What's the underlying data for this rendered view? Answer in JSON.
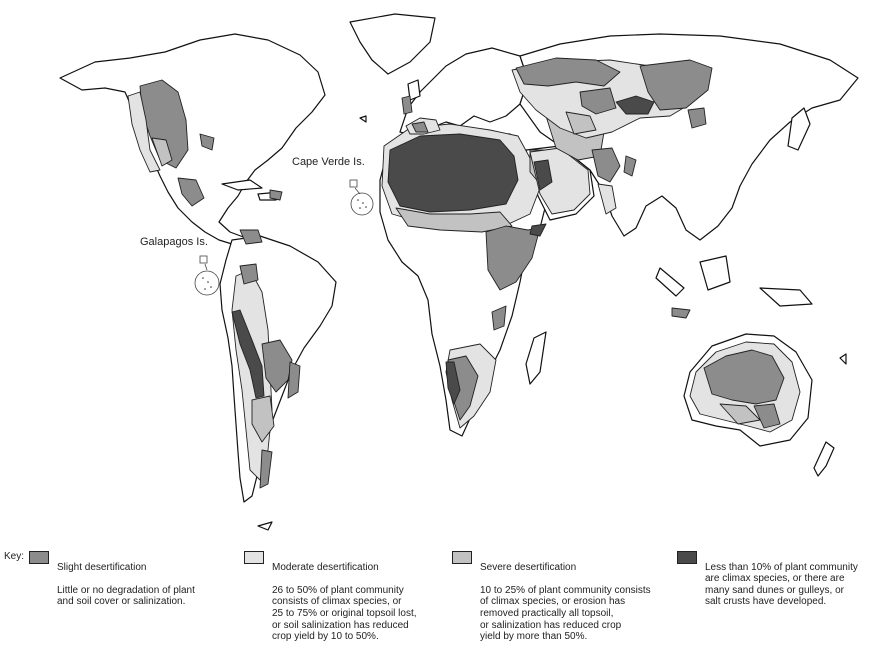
{
  "map": {
    "colors": {
      "slight": "#8c8c8c",
      "moderate": "#e3e3e3",
      "severe": "#c2c2c2",
      "extreme": "#4a4a4a",
      "land": "#ffffff",
      "outline": "#111111"
    },
    "labels": {
      "cape_verde": "Cape Verde Is.",
      "galapagos": "Galapagos Is."
    }
  },
  "legend": {
    "key_label": "Key:",
    "items": [
      {
        "title": "Slight desertification",
        "description": "Little or no degradation of plant\nand soil cover or salinization.",
        "color": "#8c8c8c"
      },
      {
        "title": "Moderate desertification",
        "description": "26 to 50% of plant community\nconsists of climax species, or\n25 to 75% or original topsoil lost,\nor soil salinization has reduced\ncrop yield by 10 to 50%.",
        "color": "#e3e3e3"
      },
      {
        "title": "Severe desertification",
        "description": "10 to 25% of plant community consists\nof climax species, or erosion has\nremoved practically all topsoil,\nor salinization has reduced crop\nyield by more than 50%.",
        "color": "#c2c2c2"
      },
      {
        "title": "",
        "description": "Less than 10% of plant community\nare climax species, or there are\nmany sand dunes or gulleys, or\nsalt crusts have developed.",
        "color": "#4a4a4a"
      }
    ]
  }
}
